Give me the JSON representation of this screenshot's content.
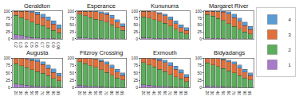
{
  "chart_data": [
    {
      "type": "bar",
      "title": "Geraldton",
      "stacked": true,
      "legend": "right",
      "categories": [
        "0.2",
        "0.3",
        "0.4",
        "0.5",
        "0.6",
        "0.7",
        "0.8",
        "0.9",
        "0.95"
      ],
      "ylim": [
        0,
        100
      ],
      "yticks": [
        0,
        25,
        50,
        75,
        100
      ],
      "series": [
        {
          "name": "1",
          "color": "#a77bca",
          "values": [
            15,
            12,
            8,
            5,
            3,
            2,
            1,
            1,
            0
          ]
        },
        {
          "name": "2",
          "color": "#5cad5c",
          "values": [
            70,
            65,
            62,
            55,
            50,
            45,
            38,
            30,
            22
          ]
        },
        {
          "name": "3",
          "color": "#e0703a",
          "values": [
            15,
            23,
            30,
            35,
            35,
            30,
            28,
            22,
            16
          ]
        },
        {
          "name": "4",
          "color": "#5b9bd5",
          "values": [
            0,
            0,
            0,
            5,
            9,
            13,
            13,
            12,
            12
          ]
        }
      ]
    },
    {
      "type": "bar",
      "title": "Esperance",
      "stacked": true,
      "categories": [
        null,
        null,
        null,
        null,
        null,
        null,
        null,
        null,
        null
      ],
      "ylim": [
        0,
        100
      ],
      "yticks": [
        0,
        25,
        50,
        75,
        100
      ],
      "series": [
        {
          "name": "1",
          "color": "#a77bca",
          "values": [
            5,
            3,
            2,
            1,
            1,
            0,
            0,
            0,
            0
          ]
        },
        {
          "name": "2",
          "color": "#5cad5c",
          "values": [
            85,
            80,
            75,
            70,
            65,
            60,
            50,
            40,
            30
          ]
        },
        {
          "name": "3",
          "color": "#e0703a",
          "values": [
            10,
            17,
            23,
            27,
            27,
            28,
            25,
            20,
            15
          ]
        },
        {
          "name": "4",
          "color": "#5b9bd5",
          "values": [
            0,
            0,
            0,
            2,
            5,
            7,
            10,
            10,
            10
          ]
        }
      ]
    },
    {
      "type": "bar",
      "title": "Kununurra",
      "stacked": true,
      "categories": [
        null,
        null,
        null,
        null,
        null,
        null,
        null,
        null,
        null
      ],
      "ylim": [
        0,
        100
      ],
      "yticks": [
        0,
        25,
        50,
        75,
        100
      ],
      "series": [
        {
          "name": "1",
          "color": "#a77bca",
          "values": [
            5,
            3,
            2,
            1,
            1,
            1,
            0,
            0,
            0
          ]
        },
        {
          "name": "2",
          "color": "#5cad5c",
          "values": [
            75,
            72,
            68,
            62,
            55,
            45,
            35,
            25,
            18
          ]
        },
        {
          "name": "3",
          "color": "#e0703a",
          "values": [
            20,
            25,
            28,
            28,
            27,
            24,
            20,
            15,
            12
          ]
        },
        {
          "name": "4",
          "color": "#5b9bd5",
          "values": [
            0,
            0,
            0,
            4,
            7,
            10,
            10,
            10,
            10
          ]
        }
      ]
    },
    {
      "type": "bar",
      "title": "Margaret River",
      "stacked": true,
      "categories": [
        null,
        null,
        null,
        null,
        null,
        null,
        null,
        null,
        null
      ],
      "ylim": [
        0,
        100
      ],
      "yticks": [
        0,
        25,
        50,
        75,
        100
      ],
      "series": [
        {
          "name": "1",
          "color": "#a77bca",
          "values": [
            3,
            2,
            1,
            1,
            0,
            0,
            0,
            0,
            0
          ]
        },
        {
          "name": "2",
          "color": "#5cad5c",
          "values": [
            85,
            80,
            72,
            65,
            55,
            45,
            35,
            25,
            18
          ]
        },
        {
          "name": "3",
          "color": "#e0703a",
          "values": [
            12,
            18,
            25,
            30,
            35,
            32,
            28,
            22,
            15
          ]
        },
        {
          "name": "4",
          "color": "#5b9bd5",
          "values": [
            0,
            0,
            2,
            4,
            8,
            13,
            12,
            13,
            12
          ]
        }
      ]
    },
    {
      "type": "bar",
      "title": "Augusta",
      "stacked": true,
      "categories": [
        "20",
        "30",
        "40",
        "50",
        "60",
        "70",
        "80",
        "90",
        "95"
      ],
      "ylim": [
        0,
        100
      ],
      "yticks": [
        0,
        25,
        50,
        75,
        100
      ],
      "series": [
        {
          "name": "1",
          "color": "#a77bca",
          "values": [
            12,
            10,
            8,
            6,
            5,
            4,
            3,
            2,
            2
          ]
        },
        {
          "name": "2",
          "color": "#5cad5c",
          "values": [
            70,
            65,
            60,
            55,
            50,
            45,
            38,
            30,
            22
          ]
        },
        {
          "name": "3",
          "color": "#e0703a",
          "values": [
            18,
            25,
            30,
            32,
            33,
            30,
            25,
            20,
            15
          ]
        },
        {
          "name": "4",
          "color": "#5b9bd5",
          "values": [
            0,
            0,
            2,
            5,
            8,
            10,
            12,
            12,
            10
          ]
        }
      ]
    },
    {
      "type": "bar",
      "title": "Fitzroy Crossing",
      "stacked": true,
      "categories": [
        "20",
        "30",
        "40",
        "50",
        "60",
        "70",
        "80",
        "90",
        "95"
      ],
      "ylim": [
        0,
        100
      ],
      "yticks": [
        0,
        25,
        50,
        75,
        100
      ],
      "series": [
        {
          "name": "1",
          "color": "#a77bca",
          "values": [
            8,
            6,
            5,
            4,
            3,
            2,
            2,
            1,
            1
          ]
        },
        {
          "name": "2",
          "color": "#5cad5c",
          "values": [
            80,
            75,
            70,
            65,
            58,
            50,
            40,
            32,
            25
          ]
        },
        {
          "name": "3",
          "color": "#e0703a",
          "values": [
            12,
            19,
            25,
            27,
            29,
            28,
            25,
            20,
            15
          ]
        },
        {
          "name": "4",
          "color": "#5b9bd5",
          "values": [
            0,
            0,
            0,
            2,
            5,
            8,
            10,
            10,
            10
          ]
        }
      ]
    },
    {
      "type": "bar",
      "title": "Exmouth",
      "stacked": true,
      "categories": [
        "20",
        "30",
        "40",
        "50",
        "60",
        "70",
        "80",
        "90",
        "95"
      ],
      "ylim": [
        0,
        100
      ],
      "yticks": [
        0,
        25,
        50,
        75,
        100
      ],
      "series": [
        {
          "name": "1",
          "color": "#a77bca",
          "values": [
            10,
            8,
            6,
            5,
            4,
            3,
            2,
            2,
            1
          ]
        },
        {
          "name": "2",
          "color": "#5cad5c",
          "values": [
            75,
            70,
            65,
            58,
            50,
            42,
            35,
            28,
            20
          ]
        },
        {
          "name": "3",
          "color": "#e0703a",
          "values": [
            15,
            22,
            27,
            30,
            32,
            30,
            25,
            20,
            14
          ]
        },
        {
          "name": "4",
          "color": "#5b9bd5",
          "values": [
            0,
            0,
            2,
            5,
            8,
            10,
            12,
            11,
            10
          ]
        }
      ]
    },
    {
      "type": "bar",
      "title": "Bidyadangs",
      "stacked": true,
      "categories": [
        "20",
        "30",
        "40",
        "50",
        "60",
        "70",
        "80",
        "90",
        "95"
      ],
      "ylim": [
        0,
        100
      ],
      "yticks": [
        0,
        25,
        50,
        75,
        100
      ],
      "series": [
        {
          "name": "1",
          "color": "#a77bca",
          "values": [
            6,
            5,
            4,
            3,
            2,
            2,
            1,
            1,
            1
          ]
        },
        {
          "name": "2",
          "color": "#5cad5c",
          "values": [
            78,
            72,
            68,
            62,
            55,
            48,
            40,
            32,
            25
          ]
        },
        {
          "name": "3",
          "color": "#e0703a",
          "values": [
            16,
            23,
            27,
            30,
            31,
            30,
            26,
            20,
            15
          ]
        },
        {
          "name": "4",
          "color": "#5b9bd5",
          "values": [
            0,
            0,
            1,
            3,
            6,
            8,
            10,
            10,
            10
          ]
        }
      ]
    }
  ]
}
